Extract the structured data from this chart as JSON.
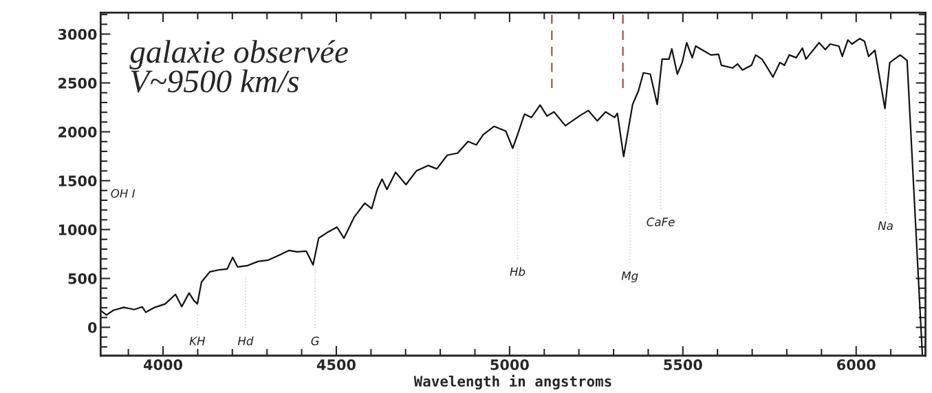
{
  "chart_data": {
    "type": "line",
    "xlabel": "Wavelength in angstroms",
    "xlim": [
      3820,
      6200
    ],
    "xticks": [
      4000,
      4500,
      5000,
      5500,
      6000
    ],
    "ylim": [
      -290,
      3220
    ],
    "yticks": [
      0,
      500,
      1000,
      1500,
      2000,
      2500,
      3000
    ],
    "grid": false,
    "legend": false,
    "marker": "none",
    "line_style": "solid",
    "series": [
      {
        "color": "#111111",
        "x": [
          3821,
          3837,
          3857,
          3887,
          3917,
          3940,
          3950,
          3976,
          4006,
          4036,
          4054,
          4075,
          4089,
          4099,
          4111,
          4135,
          4165,
          4185,
          4201,
          4215,
          4244,
          4274,
          4304,
          4334,
          4363,
          4387,
          4413,
          4433,
          4449,
          4473,
          4502,
          4522,
          4552,
          4582,
          4602,
          4618,
          4632,
          4646,
          4671,
          4701,
          4731,
          4765,
          4790,
          4820,
          4850,
          4880,
          4904,
          4924,
          4955,
          4989,
          5009,
          5023,
          5043,
          5063,
          5088,
          5108,
          5128,
          5161,
          5181,
          5201,
          5227,
          5253,
          5277,
          5303,
          5311,
          5329,
          5355,
          5372,
          5386,
          5406,
          5426,
          5440,
          5460,
          5468,
          5484,
          5498,
          5511,
          5527,
          5537,
          5581,
          5603,
          5611,
          5643,
          5658,
          5672,
          5698,
          5710,
          5728,
          5742,
          5760,
          5780,
          5793,
          5807,
          5827,
          5845,
          5855,
          5893,
          5911,
          5925,
          5950,
          5960,
          5976,
          5988,
          6010,
          6024,
          6036,
          6054,
          6083,
          6097,
          6127,
          6147,
          6191
        ],
        "values": [
          168,
          126,
          175,
          204,
          182,
          210,
          154,
          204,
          239,
          337,
          211,
          351,
          274,
          240,
          463,
          568,
          590,
          596,
          716,
          618,
          632,
          674,
          688,
          737,
          786,
          772,
          780,
          639,
          912,
          968,
          1025,
          912,
          1130,
          1270,
          1214,
          1410,
          1516,
          1410,
          1586,
          1460,
          1600,
          1656,
          1621,
          1761,
          1782,
          1902,
          1867,
          1972,
          2056,
          2007,
          1832,
          1972,
          2182,
          2147,
          2274,
          2161,
          2204,
          2063,
          2112,
          2161,
          2218,
          2112,
          2204,
          2147,
          2189,
          1747,
          2281,
          2421,
          2604,
          2590,
          2281,
          2744,
          2744,
          2849,
          2590,
          2709,
          2912,
          2758,
          2877,
          2786,
          2793,
          2681,
          2653,
          2695,
          2632,
          2681,
          2786,
          2744,
          2667,
          2561,
          2709,
          2681,
          2786,
          2758,
          2856,
          2744,
          2912,
          2842,
          2898,
          2877,
          2772,
          2940,
          2898,
          2954,
          2926,
          2772,
          2835,
          2239,
          2709,
          2786,
          2730,
          -280
        ]
      }
    ],
    "ref_lines": [
      {
        "axis": "x",
        "value": 5122,
        "color": "#8b1a1a",
        "line_style": "dashed"
      },
      {
        "axis": "x",
        "value": 5327,
        "color": "#8b1a1a",
        "line_style": "dashed"
      },
      {
        "axis": "x",
        "value": 4099,
        "color": "#d0d0d0",
        "line_style": "dotted",
        "label": "KH"
      },
      {
        "axis": "x",
        "value": 4238,
        "color": "#d0d0d0",
        "line_style": "dotted",
        "label": "Hd"
      },
      {
        "axis": "x",
        "value": 4439,
        "color": "#d0d0d0",
        "line_style": "dotted",
        "label": "G"
      },
      {
        "axis": "x",
        "value": 5023,
        "color": "#d0d0d0",
        "line_style": "dotted",
        "label": "Hb"
      },
      {
        "axis": "x",
        "value": 5347,
        "color": "#d0d0d0",
        "line_style": "dotted",
        "label": "Mg"
      },
      {
        "axis": "x",
        "value": 5436,
        "color": "#d0d0d0",
        "line_style": "dotted",
        "label": "CaFe"
      },
      {
        "axis": "x",
        "value": 6085,
        "color": "#d0d0d0",
        "line_style": "dotted",
        "label": "Na"
      }
    ],
    "annotations": [
      "galaxie observée\nV~9500 km/s",
      "OH I"
    ]
  }
}
